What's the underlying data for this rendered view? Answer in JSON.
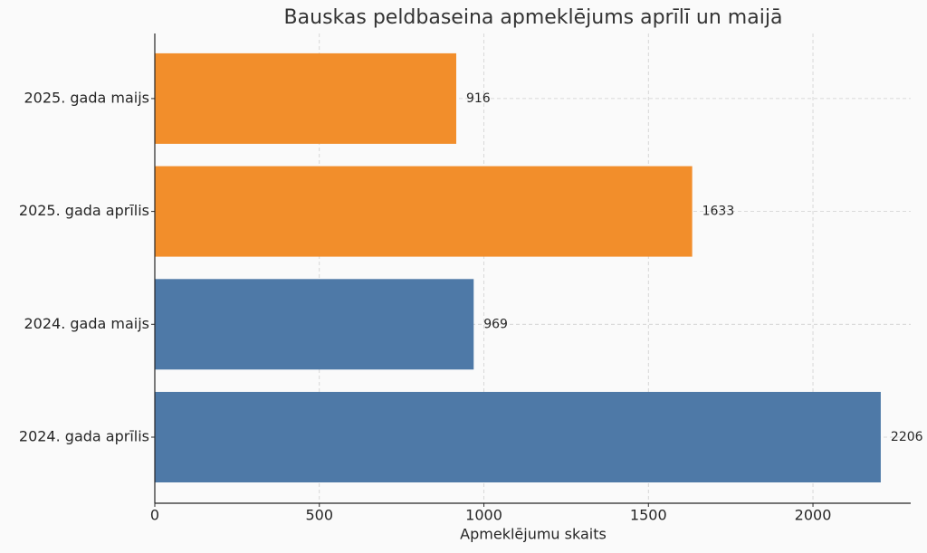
{
  "chart_data": {
    "type": "barh",
    "title": "Bauskas peldbaseina apmeklējums aprīlī un maijā",
    "x_label": "Apmeklējumu skaits",
    "categories": [
      "2024. gada aprīlis",
      "2024. gada maijs",
      "2025. gada aprīlis",
      "2025. gada maijs"
    ],
    "values": [
      2206,
      969,
      1633,
      916
    ],
    "colors": [
      "#4e79a7",
      "#4e79a7",
      "#f28e2b",
      "#f28e2b"
    ],
    "xlim": [
      0,
      2297
    ],
    "xticks": [
      0,
      500,
      1000,
      1500,
      2000
    ],
    "grid": true
  }
}
